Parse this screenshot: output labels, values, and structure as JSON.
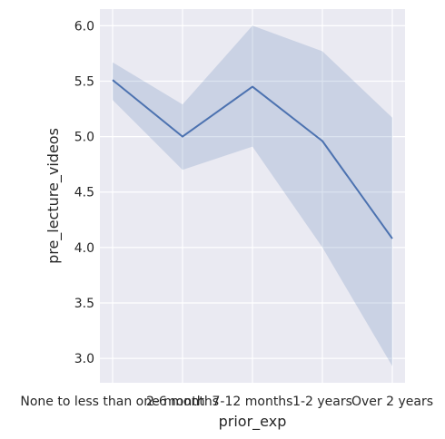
{
  "chart_data": {
    "type": "line",
    "xlabel": "prior_exp",
    "ylabel": "pre_lecture_videos",
    "categories": [
      "None to less than one month",
      "2-6 months",
      "7-12 months",
      "1-2 years",
      "Over 2 years"
    ],
    "series": [
      {
        "values": [
          5.51,
          5.0,
          5.45,
          4.96,
          4.08
        ],
        "ci_lower": [
          5.33,
          4.7,
          4.91,
          4.0,
          2.93
        ],
        "ci_upper": [
          5.67,
          5.29,
          6.0,
          5.77,
          5.17
        ]
      }
    ],
    "yticks": [
      "3.0",
      "3.5",
      "4.0",
      "4.5",
      "5.0",
      "5.5",
      "6.0"
    ],
    "ylim": [
      2.78,
      6.15
    ],
    "grid": true,
    "colors": {
      "line": "#4c72b0",
      "band": "#4c72b0",
      "background": "#eaeaf2",
      "grid": "#ffffff"
    }
  }
}
